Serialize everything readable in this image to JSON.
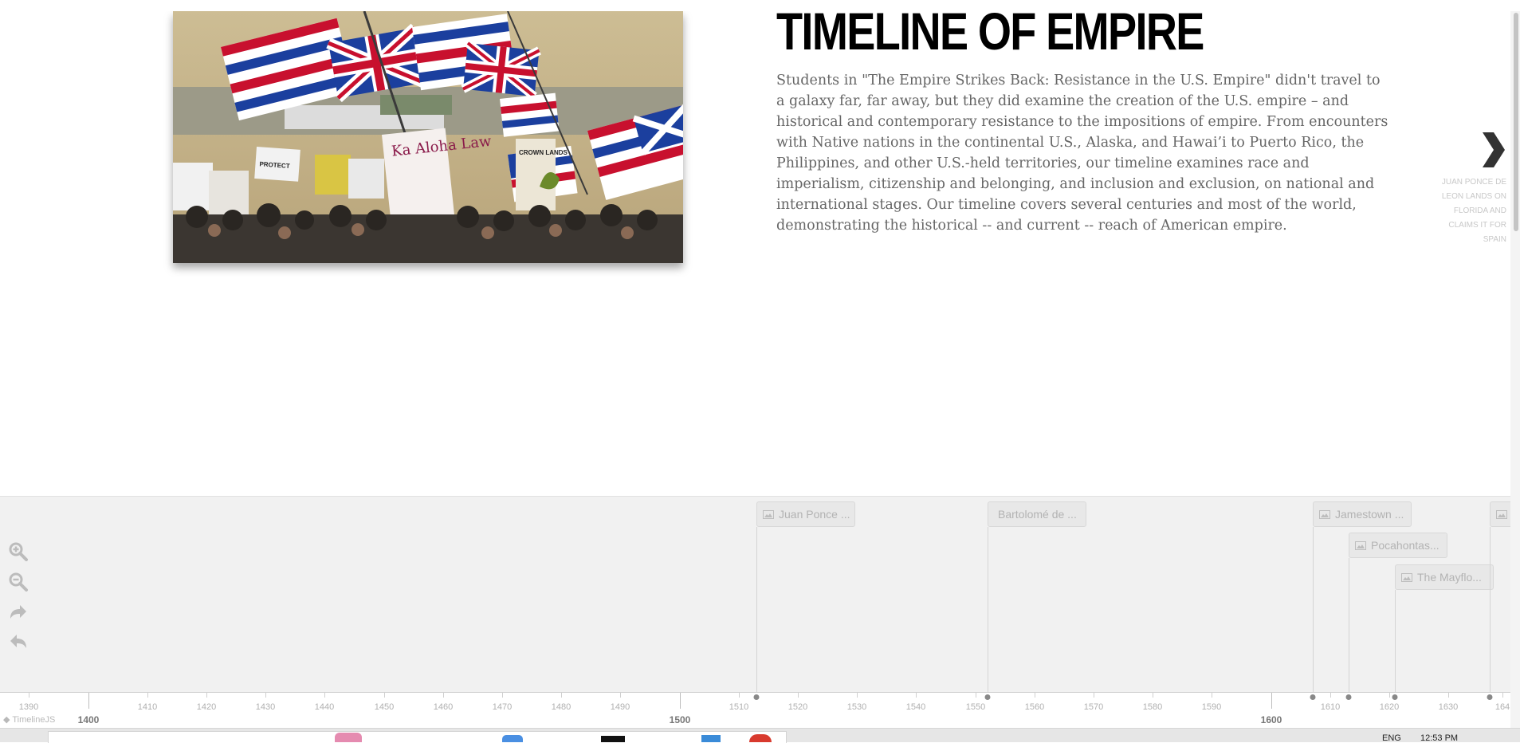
{
  "slide": {
    "headline": "TIMELINE OF EMPIRE",
    "description": "Students in \"The Empire Strikes Back: Resistance in the U.S. Empire\" didn't travel to a galaxy far, far away, but they did examine the creation of the U.S. empire – and historical and contemporary resistance to the impositions of empire. From encounters with Native nations in the continental U.S., Alaska, and Hawai’i to Puerto Rico, the Philippines, and other U.S.-held territories, our timeline examines race and imperialism, citizenship and belonging, and inclusion and exclusion, on national and international stages. Our timeline covers several centuries and most of the world, demonstrating the historical -- and current -- reach of American empire.",
    "next_icon": "chevron-right-icon",
    "next_label": "JUAN PONCE DE LEON LANDS ON FLORIDA AND CLAIMS IT FOR SPAIN",
    "photo_signs": {
      "sign1": "Ka Aloha Law",
      "sign2": "CROWN LANDS",
      "sign3": "PROTECT"
    }
  },
  "navigator": {
    "tools": [
      {
        "name": "zoom-in-icon"
      },
      {
        "name": "zoom-out-icon"
      },
      {
        "name": "back-to-start-icon"
      },
      {
        "name": "undo-icon"
      }
    ],
    "events": [
      {
        "label": "Juan Ponce ..."
      },
      {
        "label": "Bartolomé de ..."
      },
      {
        "label": "Jamestown ..."
      },
      {
        "label": "Pocahontas..."
      },
      {
        "label": "The Mayflo..."
      },
      {
        "label": ""
      }
    ],
    "event_icon": "image-icon"
  },
  "axis": {
    "minor_ticks": [
      "1390",
      "1410",
      "1420",
      "1430",
      "1440",
      "1450",
      "1460",
      "1470",
      "1480",
      "1490",
      "1510",
      "1520",
      "1530",
      "1540",
      "1550",
      "1560",
      "1570",
      "1580",
      "1590",
      "1610",
      "1620",
      "1630",
      "164"
    ],
    "major_ticks": [
      "1400",
      "1500",
      "1600"
    ]
  },
  "credit": "TimelineJS",
  "taskbar": {
    "lang": "ENG",
    "time": "12:53 PM"
  }
}
